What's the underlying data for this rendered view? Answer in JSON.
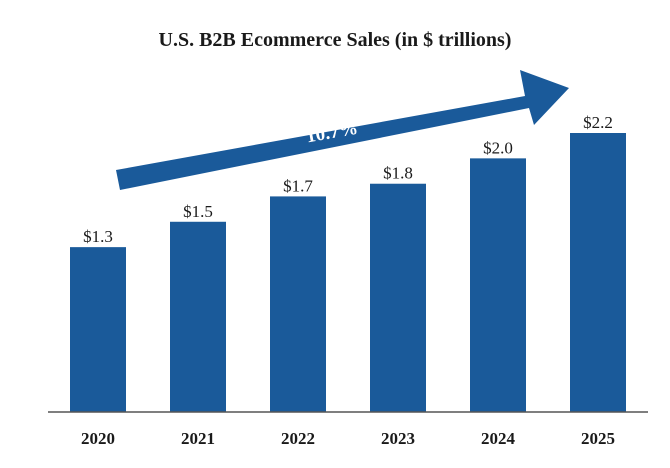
{
  "chart_data": {
    "type": "bar",
    "title": "U.S. B2B Ecommerce Sales (in $ trillions)",
    "xlabel": "",
    "ylabel": "",
    "categories": [
      "2020",
      "2021",
      "2022",
      "2023",
      "2024",
      "2025"
    ],
    "values": [
      1.3,
      1.5,
      1.7,
      1.8,
      2.0,
      2.2
    ],
    "data_labels": [
      "$1.3",
      "$1.5",
      "$1.7",
      "$1.8",
      "$2.0",
      "$2.2"
    ],
    "ylim": [
      0,
      2.2
    ],
    "grid": false,
    "annotation": {
      "text": "10.7%",
      "type": "growth-arrow"
    },
    "colors": {
      "bar": "#1a5a9a",
      "arrow": "#1a5a9a",
      "axis": "#555555"
    }
  }
}
